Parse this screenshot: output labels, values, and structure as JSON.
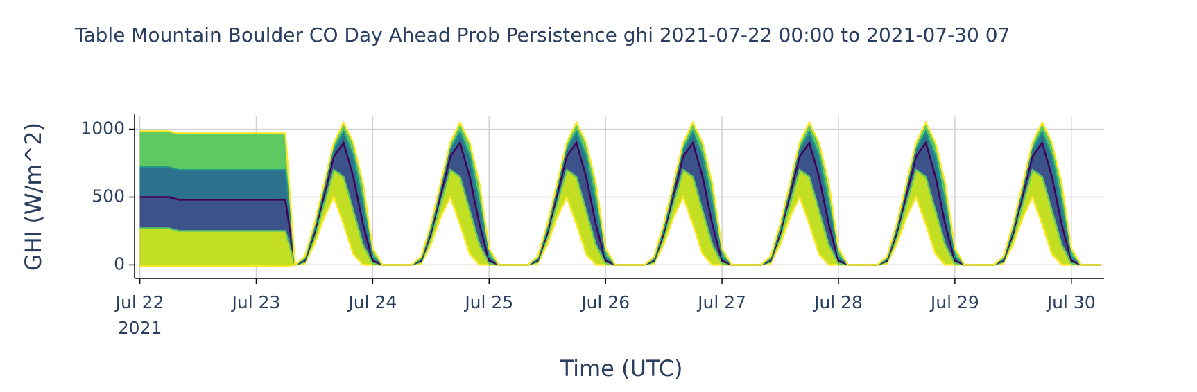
{
  "chart_data": {
    "type": "area",
    "title": "Table Mountain Boulder CO Day Ahead Prob Persistence ghi 2021-07-22 00:00 to 2021-07-30 07",
    "x_label": "Time (UTC)",
    "y_label": "GHI (W/m^2)",
    "xlim": [
      "2021-07-21 22:55",
      "2021-07-30 06:45"
    ],
    "xticks": [
      {
        "value": "2021-07-22 00:00",
        "label": [
          "Jul 22",
          "2021"
        ]
      },
      {
        "value": "2021-07-23 00:00",
        "label": [
          "Jul 23"
        ]
      },
      {
        "value": "2021-07-24 00:00",
        "label": [
          "Jul 24"
        ]
      },
      {
        "value": "2021-07-25 00:00",
        "label": [
          "Jul 25"
        ]
      },
      {
        "value": "2021-07-26 00:00",
        "label": [
          "Jul 26"
        ]
      },
      {
        "value": "2021-07-27 00:00",
        "label": [
          "Jul 27"
        ]
      },
      {
        "value": "2021-07-28 00:00",
        "label": [
          "Jul 28"
        ]
      },
      {
        "value": "2021-07-29 00:00",
        "label": [
          "Jul 29"
        ]
      },
      {
        "value": "2021-07-30 00:00",
        "label": [
          "Jul 30"
        ]
      }
    ],
    "ylim": [
      -100,
      1100
    ],
    "yticks": [
      0,
      500,
      1000
    ],
    "grid": true,
    "x": [
      "2021-07-22 00:00",
      "2021-07-22 02:00",
      "2021-07-22 04:00",
      "2021-07-22 06:00",
      "2021-07-22 08:00",
      "2021-07-22 10:00",
      "2021-07-22 12:00",
      "2021-07-22 14:00",
      "2021-07-22 16:00",
      "2021-07-22 18:00",
      "2021-07-22 20:00",
      "2021-07-22 22:00",
      "2021-07-23 00:00",
      "2021-07-23 02:00",
      "2021-07-23 04:00",
      "2021-07-23 06:00",
      "2021-07-23 08:00",
      "2021-07-23 10:00",
      "2021-07-23 12:00",
      "2021-07-23 14:00",
      "2021-07-23 16:00",
      "2021-07-23 18:00",
      "2021-07-23 20:00",
      "2021-07-23 22:00",
      "2021-07-24 00:00",
      "2021-07-24 02:00",
      "2021-07-24 04:00",
      "2021-07-24 06:00",
      "2021-07-24 08:00",
      "2021-07-24 10:00",
      "2021-07-24 12:00",
      "2021-07-24 14:00",
      "2021-07-24 16:00",
      "2021-07-24 18:00",
      "2021-07-24 20:00",
      "2021-07-24 22:00",
      "2021-07-25 00:00",
      "2021-07-25 02:00",
      "2021-07-25 04:00",
      "2021-07-25 06:00",
      "2021-07-25 08:00",
      "2021-07-25 10:00",
      "2021-07-25 12:00",
      "2021-07-25 14:00",
      "2021-07-25 16:00",
      "2021-07-25 18:00",
      "2021-07-25 20:00",
      "2021-07-25 22:00",
      "2021-07-26 00:00",
      "2021-07-26 02:00",
      "2021-07-26 04:00",
      "2021-07-26 06:00",
      "2021-07-26 08:00",
      "2021-07-26 10:00",
      "2021-07-26 12:00",
      "2021-07-26 14:00",
      "2021-07-26 16:00",
      "2021-07-26 18:00",
      "2021-07-26 20:00",
      "2021-07-26 22:00",
      "2021-07-27 00:00",
      "2021-07-27 02:00",
      "2021-07-27 04:00",
      "2021-07-27 06:00",
      "2021-07-27 08:00",
      "2021-07-27 10:00",
      "2021-07-27 12:00",
      "2021-07-27 14:00",
      "2021-07-27 16:00",
      "2021-07-27 18:00",
      "2021-07-27 20:00",
      "2021-07-27 22:00",
      "2021-07-28 00:00",
      "2021-07-28 02:00",
      "2021-07-28 04:00",
      "2021-07-28 06:00",
      "2021-07-28 08:00",
      "2021-07-28 10:00",
      "2021-07-28 12:00",
      "2021-07-28 14:00",
      "2021-07-28 16:00",
      "2021-07-28 18:00",
      "2021-07-28 20:00",
      "2021-07-28 22:00",
      "2021-07-29 00:00",
      "2021-07-29 02:00",
      "2021-07-29 04:00",
      "2021-07-29 06:00",
      "2021-07-29 08:00",
      "2021-07-29 10:00",
      "2021-07-29 12:00",
      "2021-07-29 14:00",
      "2021-07-29 16:00",
      "2021-07-29 18:00",
      "2021-07-29 20:00",
      "2021-07-29 22:00",
      "2021-07-30 00:00",
      "2021-07-30 02:00",
      "2021-07-30 04:00",
      "2021-07-30 06:00"
    ],
    "series": [
      {
        "color": "#fde725",
        "values": [
          -10,
          -10,
          -10,
          -10,
          -10,
          -10,
          -10,
          -10,
          -10,
          -10,
          -10,
          -10,
          -10,
          -10,
          -10,
          -10,
          0,
          10,
          150,
          350,
          500,
          300,
          80,
          0,
          0,
          0,
          0,
          0,
          0,
          10,
          150,
          350,
          500,
          300,
          80,
          0,
          0,
          0,
          0,
          0,
          0,
          10,
          150,
          350,
          500,
          300,
          80,
          0,
          0,
          0,
          0,
          0,
          0,
          10,
          150,
          350,
          500,
          300,
          80,
          0,
          0,
          0,
          0,
          0,
          0,
          10,
          150,
          350,
          500,
          300,
          80,
          0,
          0,
          0,
          0,
          0,
          0,
          10,
          150,
          350,
          500,
          300,
          80,
          0,
          0,
          0,
          0,
          0,
          0,
          10,
          150,
          350,
          500,
          300,
          80,
          0,
          0,
          0,
          0,
          0
        ]
      },
      {
        "color": "#5ec962",
        "fillcolor": "#c2df23",
        "values": [
          270,
          270,
          270,
          270,
          250,
          250,
          250,
          250,
          250,
          250,
          250,
          250,
          250,
          250,
          250,
          250,
          0,
          20,
          200,
          450,
          700,
          650,
          400,
          150,
          10,
          0,
          0,
          0,
          0,
          20,
          200,
          450,
          700,
          650,
          400,
          150,
          10,
          0,
          0,
          0,
          0,
          20,
          200,
          450,
          700,
          650,
          400,
          150,
          10,
          0,
          0,
          0,
          0,
          20,
          200,
          450,
          700,
          650,
          400,
          150,
          10,
          0,
          0,
          0,
          0,
          20,
          200,
          450,
          700,
          650,
          400,
          150,
          10,
          0,
          0,
          0,
          0,
          20,
          200,
          450,
          700,
          650,
          400,
          150,
          10,
          0,
          0,
          0,
          0,
          20,
          200,
          450,
          700,
          650,
          400,
          150,
          10,
          0,
          0,
          0
        ]
      },
      {
        "color": "#440154",
        "fillcolor": "#3b528b",
        "values": [
          500,
          500,
          500,
          500,
          480,
          480,
          480,
          480,
          480,
          480,
          480,
          480,
          480,
          480,
          480,
          480,
          0,
          30,
          230,
          520,
          800,
          900,
          650,
          300,
          30,
          0,
          0,
          0,
          0,
          30,
          230,
          520,
          800,
          900,
          650,
          300,
          30,
          0,
          0,
          0,
          0,
          30,
          230,
          520,
          800,
          900,
          650,
          300,
          30,
          0,
          0,
          0,
          0,
          30,
          230,
          520,
          800,
          900,
          650,
          300,
          30,
          0,
          0,
          0,
          0,
          30,
          230,
          520,
          800,
          900,
          650,
          300,
          30,
          0,
          0,
          0,
          0,
          30,
          230,
          520,
          800,
          900,
          650,
          300,
          30,
          0,
          0,
          0,
          0,
          30,
          230,
          520,
          800,
          900,
          650,
          300,
          30,
          0,
          0,
          0
        ]
      },
      {
        "color": "#21918c",
        "fillcolor": "#2c728e",
        "values": [
          720,
          720,
          720,
          720,
          700,
          700,
          700,
          700,
          700,
          700,
          700,
          700,
          700,
          700,
          700,
          700,
          0,
          40,
          260,
          560,
          850,
          980,
          800,
          450,
          60,
          0,
          0,
          0,
          0,
          40,
          260,
          560,
          850,
          980,
          800,
          450,
          60,
          0,
          0,
          0,
          0,
          40,
          260,
          560,
          850,
          980,
          800,
          450,
          60,
          0,
          0,
          0,
          0,
          40,
          260,
          560,
          850,
          980,
          800,
          450,
          60,
          0,
          0,
          0,
          0,
          40,
          260,
          560,
          850,
          980,
          800,
          450,
          60,
          0,
          0,
          0,
          0,
          40,
          260,
          560,
          850,
          980,
          800,
          450,
          60,
          0,
          0,
          0,
          0,
          40,
          260,
          560,
          850,
          980,
          800,
          450,
          60,
          0,
          0,
          0
        ]
      },
      {
        "color": "#fde725",
        "fillcolor": "#5ec962",
        "values": [
          985,
          985,
          985,
          985,
          970,
          970,
          970,
          970,
          970,
          970,
          970,
          970,
          970,
          970,
          970,
          970,
          0,
          60,
          300,
          600,
          900,
          1050,
          900,
          600,
          120,
          0,
          0,
          0,
          0,
          60,
          300,
          600,
          900,
          1050,
          900,
          600,
          120,
          0,
          0,
          0,
          0,
          60,
          300,
          600,
          900,
          1050,
          900,
          600,
          120,
          0,
          0,
          0,
          0,
          60,
          300,
          600,
          900,
          1050,
          900,
          600,
          120,
          0,
          0,
          0,
          0,
          60,
          300,
          600,
          900,
          1050,
          900,
          600,
          120,
          0,
          0,
          0,
          0,
          60,
          300,
          600,
          900,
          1050,
          900,
          600,
          120,
          0,
          0,
          0,
          0,
          60,
          300,
          600,
          900,
          1050,
          900,
          600,
          120,
          0,
          0,
          0
        ]
      }
    ]
  }
}
